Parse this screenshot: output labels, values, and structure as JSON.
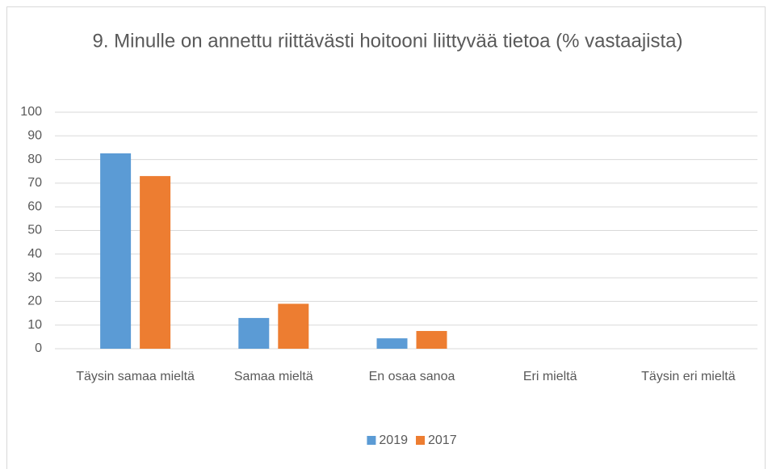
{
  "chart_data": {
    "type": "bar",
    "title": "9. Minulle on annettu riittävästi hoitooni liittyvää tietoa (% vastaajista)",
    "categories": [
      "Täysin samaa mieltä",
      "Samaa mieltä",
      "En osaa sanoa",
      "Eri mieltä",
      "Täysin eri mieltä"
    ],
    "series": [
      {
        "name": "2019",
        "color": "#5b9bd5",
        "values": [
          82.6,
          13,
          4.4,
          0,
          0
        ]
      },
      {
        "name": "2017",
        "color": "#ed7d31",
        "values": [
          73,
          19,
          7.5,
          0,
          0
        ]
      }
    ],
    "ylim": [
      0,
      100
    ],
    "yticks": [
      0,
      10,
      20,
      30,
      40,
      50,
      60,
      70,
      80,
      90,
      100
    ],
    "grid": true,
    "legend": "bottom"
  }
}
